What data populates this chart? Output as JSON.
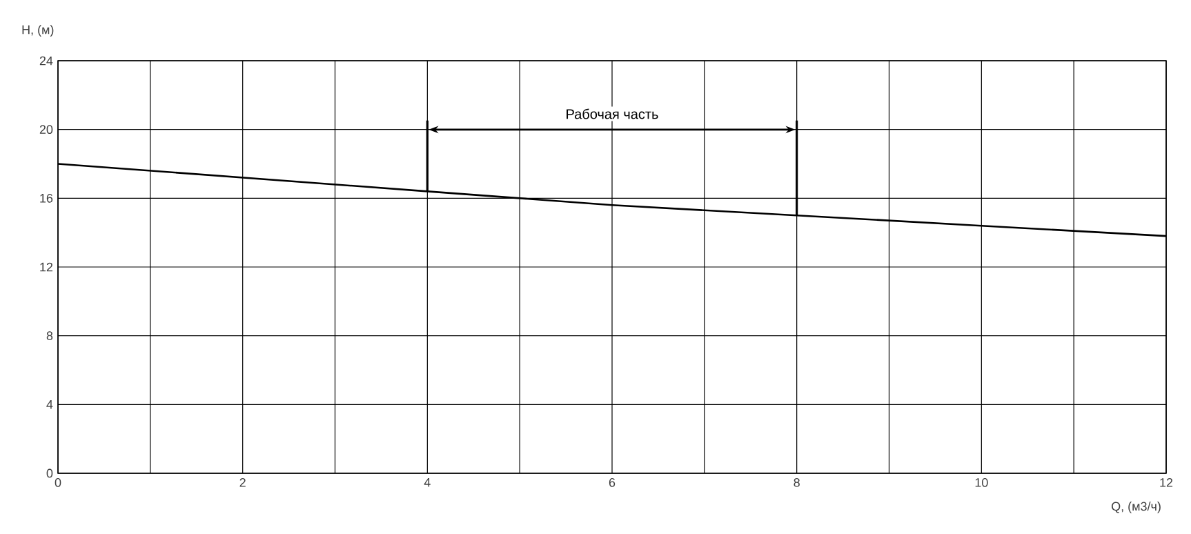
{
  "chart_data": {
    "type": "line",
    "xlabel": "Q, (м3/ч)",
    "ylabel": "H, (м)",
    "x": [
      0,
      2,
      4,
      6,
      8,
      10,
      12
    ],
    "series": [
      {
        "color": "#000000",
        "values": [
          18,
          17.2,
          16.4,
          15.6,
          15,
          14.4,
          13.8
        ]
      }
    ],
    "xlim": [
      0,
      12
    ],
    "ylim": [
      0,
      24
    ],
    "xticks": [
      0,
      {
        "value": 1,
        "label": null
      },
      2,
      {
        "value": 3,
        "label": null
      },
      4,
      {
        "value": 5,
        "label": null
      },
      6,
      {
        "value": 7,
        "label": null
      },
      8,
      {
        "value": 9,
        "label": null
      },
      10,
      {
        "value": 11,
        "label": null
      },
      12
    ],
    "yticks": [
      0,
      4,
      8,
      12,
      16,
      20,
      24
    ],
    "grid": true,
    "marker": "none",
    "line_style": "solid",
    "ref_lines": [
      {
        "axis": "x",
        "value": 4
      },
      {
        "axis": "x",
        "value": 8
      }
    ],
    "annotations": [
      "Рабочая часть"
    ]
  }
}
